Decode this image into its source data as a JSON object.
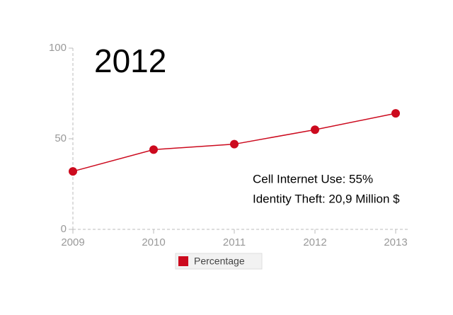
{
  "chart_data": {
    "type": "line",
    "title": "2012",
    "annotations": [
      "Cell Internet Use: 55%",
      "Identity Theft: 20,9 Million $"
    ],
    "categories": [
      "2009",
      "2010",
      "2011",
      "2012",
      "2013"
    ],
    "series": [
      {
        "name": "Percentage",
        "color": "#cc0a1e",
        "values": [
          32,
          44,
          47,
          55,
          64
        ]
      }
    ],
    "ylim": [
      0,
      100
    ],
    "yticks": [
      0,
      50,
      100
    ],
    "grid": false,
    "legend": "bottom"
  }
}
